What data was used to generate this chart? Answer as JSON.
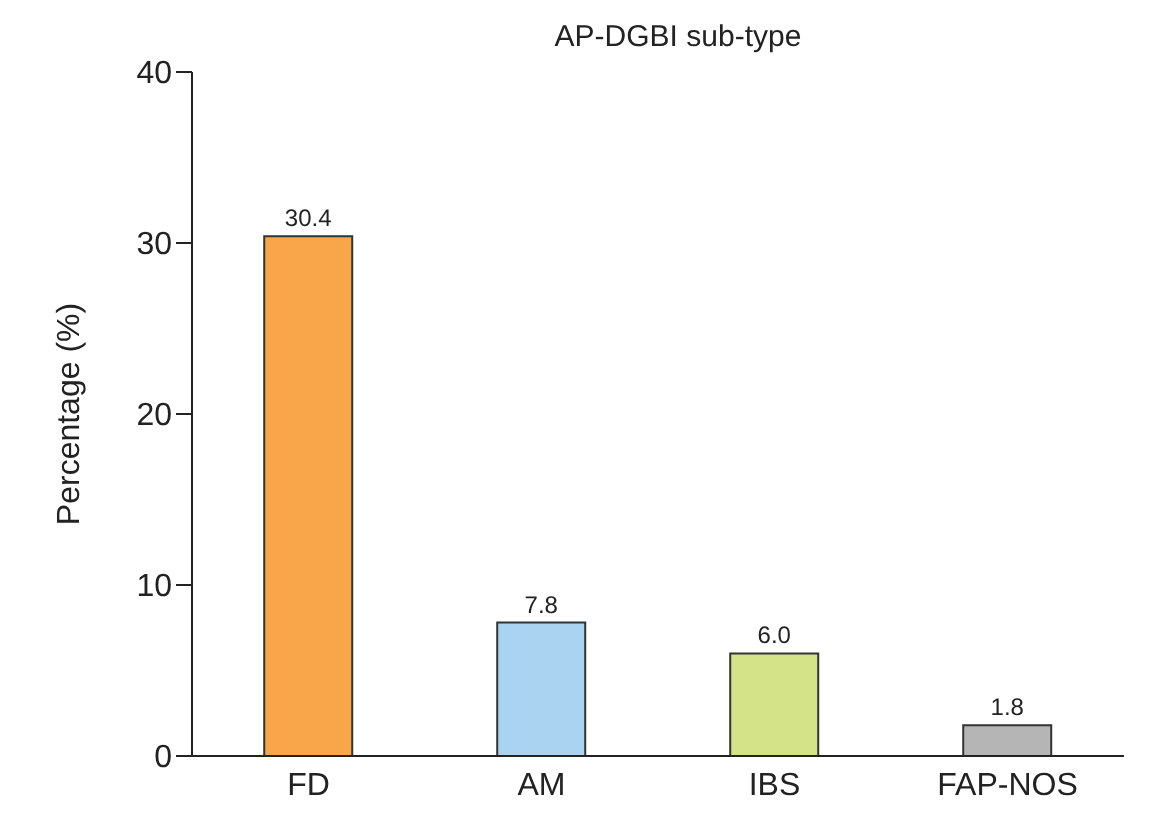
{
  "chart_data": {
    "type": "bar",
    "title": "AP-DGBI sub-type",
    "ylabel": "Percentage (%)",
    "categories": [
      "FD",
      "AM",
      "IBS",
      "FAP-NOS"
    ],
    "values": [
      30.4,
      7.8,
      6.0,
      1.8
    ],
    "colors": [
      "#f9a64a",
      "#a9d3f0",
      "#d5e388",
      "#b5b5b5"
    ],
    "value_labels": [
      "30.4",
      "7.8",
      "6.0",
      "1.8"
    ],
    "ylim": [
      0,
      40
    ],
    "yticks": [
      0,
      10,
      20,
      30,
      40
    ],
    "grid": false
  }
}
